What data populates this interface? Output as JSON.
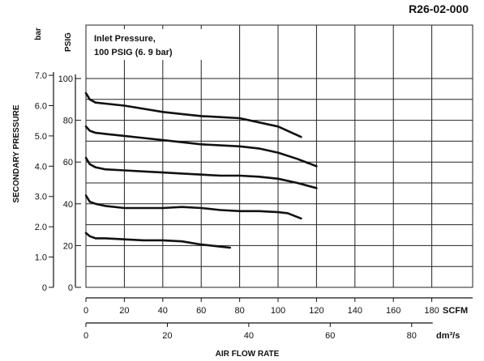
{
  "chart_data": {
    "type": "line",
    "title": "R26-02-000",
    "annotation": [
      "Inlet Pressure,",
      "100 PSIG (6. 9 bar)"
    ],
    "xlabel": "AIR FLOW RATE",
    "ylabel": "SECONDARY PRESSURE",
    "x_unit_primary": "SCFM",
    "x_unit_secondary": "dm³/s",
    "y_unit_primary": "PSIG",
    "y_unit_secondary": "bar",
    "xlim": [
      0,
      200
    ],
    "ylim": [
      0,
      110
    ],
    "grid": true,
    "x_ticks": [
      0,
      20,
      40,
      60,
      80,
      100,
      120,
      140,
      160,
      180
    ],
    "x_ticks_secondary": [
      0,
      20,
      40,
      60,
      80
    ],
    "y_ticks": [
      0,
      20,
      40,
      60,
      80,
      100
    ],
    "y_ticks_secondary": [
      "0",
      "1.0",
      "2.0",
      "3.0",
      "4.0",
      "5.0",
      "6.0",
      "7.0"
    ],
    "series": [
      {
        "x": [
          0,
          2,
          5,
          10,
          20,
          30,
          40,
          50,
          60,
          70,
          75
        ],
        "y": [
          26,
          24.5,
          23.5,
          23.5,
          23,
          22.5,
          22.5,
          22,
          20.5,
          19.5,
          19
        ]
      },
      {
        "x": [
          0,
          2,
          5,
          10,
          20,
          30,
          40,
          50,
          60,
          70,
          80,
          90,
          100,
          105,
          112
        ],
        "y": [
          44,
          41,
          40,
          39,
          38,
          38,
          38,
          38.5,
          38,
          37,
          36.5,
          36.5,
          36,
          35.5,
          33
        ]
      },
      {
        "x": [
          0,
          2,
          5,
          10,
          20,
          30,
          40,
          50,
          60,
          70,
          80,
          90,
          100,
          110,
          120
        ],
        "y": [
          62,
          59,
          57.5,
          56.5,
          56,
          55.5,
          55,
          54.5,
          54,
          53.5,
          53.5,
          53,
          52,
          50,
          47.5
        ]
      },
      {
        "x": [
          0,
          2,
          5,
          10,
          20,
          30,
          40,
          50,
          60,
          70,
          80,
          90,
          100,
          110,
          120
        ],
        "y": [
          77,
          75,
          74,
          73.5,
          72.5,
          71.5,
          70.5,
          69.5,
          68.5,
          68,
          67.5,
          66.5,
          64.5,
          61.5,
          58
        ]
      },
      {
        "x": [
          0,
          2,
          5,
          10,
          20,
          30,
          40,
          50,
          60,
          70,
          80,
          90,
          100,
          112
        ],
        "y": [
          93,
          90,
          88.5,
          88,
          87,
          85.5,
          84,
          83,
          82,
          81.5,
          81,
          79,
          77,
          72
        ]
      }
    ]
  }
}
